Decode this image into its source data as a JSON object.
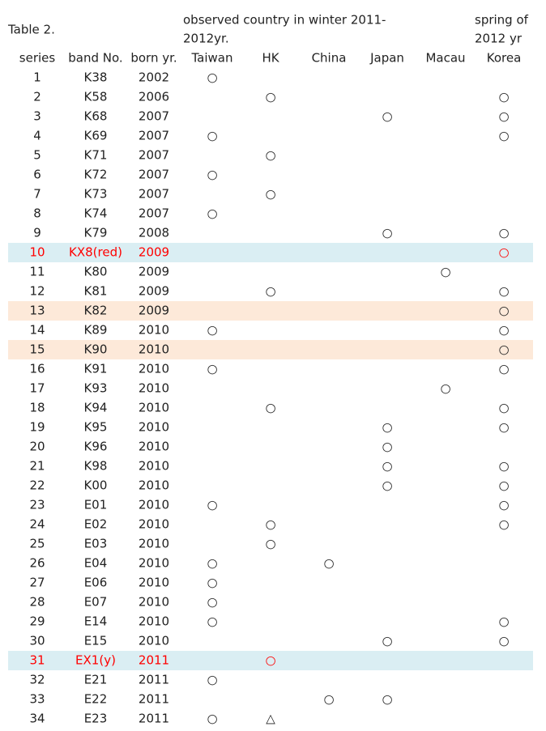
{
  "header": {
    "caption": "Table 2.",
    "observed_line1": "observed country in winter 2011-",
    "observed_line2": "2012yr.",
    "spring_line1": "spring of",
    "spring_line2": "2012 yr"
  },
  "table": {
    "columns": [
      "series",
      "band No.",
      "born yr.",
      "Taiwan",
      "HK",
      "China",
      "Japan",
      "Macau",
      "Korea"
    ],
    "rows": [
      {
        "cells": [
          "1",
          "K38",
          "2002",
          "○",
          null,
          null,
          null,
          null,
          null
        ]
      },
      {
        "cells": [
          "2",
          "K58",
          "2006",
          null,
          "○",
          null,
          null,
          null,
          "○"
        ]
      },
      {
        "cells": [
          "3",
          "K68",
          "2007",
          null,
          null,
          null,
          "○",
          null,
          "○"
        ]
      },
      {
        "cells": [
          "4",
          "K69",
          "2007",
          "○",
          null,
          null,
          null,
          null,
          "○"
        ]
      },
      {
        "cells": [
          "5",
          "K71",
          "2007",
          null,
          "○",
          null,
          null,
          null,
          null
        ]
      },
      {
        "cells": [
          "6",
          "K72",
          "2007",
          "○",
          null,
          null,
          null,
          null,
          null
        ]
      },
      {
        "cells": [
          "7",
          "K73",
          "2007",
          null,
          "○",
          null,
          null,
          null,
          null
        ]
      },
      {
        "cells": [
          "8",
          "K74",
          "2007",
          "○",
          null,
          null,
          null,
          null,
          null
        ]
      },
      {
        "cells": [
          "9",
          "K79",
          "2008",
          null,
          null,
          null,
          "○",
          null,
          "○"
        ]
      },
      {
        "cells": [
          "10",
          "KX8(red)",
          "2009",
          null,
          null,
          null,
          null,
          null,
          "○"
        ],
        "fill": "#daeef3",
        "color": "#ff0000"
      },
      {
        "cells": [
          "11",
          "K80",
          "2009",
          null,
          null,
          null,
          null,
          "○",
          null
        ]
      },
      {
        "cells": [
          "12",
          "K81",
          "2009",
          null,
          "○",
          null,
          null,
          null,
          "○"
        ]
      },
      {
        "cells": [
          "13",
          "K82",
          "2009",
          null,
          null,
          null,
          null,
          null,
          "○"
        ],
        "fill": "#fde9d9"
      },
      {
        "cells": [
          "14",
          "K89",
          "2010",
          "○",
          null,
          null,
          null,
          null,
          "○"
        ]
      },
      {
        "cells": [
          "15",
          "K90",
          "2010",
          null,
          null,
          null,
          null,
          null,
          "○"
        ],
        "fill": "#fde9d9"
      },
      {
        "cells": [
          "16",
          "K91",
          "2010",
          "○",
          null,
          null,
          null,
          null,
          "○"
        ]
      },
      {
        "cells": [
          "17",
          "K93",
          "2010",
          null,
          null,
          null,
          null,
          "○",
          null
        ]
      },
      {
        "cells": [
          "18",
          "K94",
          "2010",
          null,
          "○",
          null,
          null,
          null,
          "○"
        ]
      },
      {
        "cells": [
          "19",
          "K95",
          "2010",
          null,
          null,
          null,
          "○",
          null,
          "○"
        ]
      },
      {
        "cells": [
          "20",
          "K96",
          "2010",
          null,
          null,
          null,
          "○",
          null,
          null
        ]
      },
      {
        "cells": [
          "21",
          "K98",
          "2010",
          null,
          null,
          null,
          "○",
          null,
          "○"
        ]
      },
      {
        "cells": [
          "22",
          "K00",
          "2010",
          null,
          null,
          null,
          "○",
          null,
          "○"
        ]
      },
      {
        "cells": [
          "23",
          "E01",
          "2010",
          "○",
          null,
          null,
          null,
          null,
          "○"
        ]
      },
      {
        "cells": [
          "24",
          "E02",
          "2010",
          null,
          "○",
          null,
          null,
          null,
          "○"
        ]
      },
      {
        "cells": [
          "25",
          "E03",
          "2010",
          null,
          "○",
          null,
          null,
          null,
          null
        ]
      },
      {
        "cells": [
          "26",
          "E04",
          "2010",
          "○",
          null,
          "○",
          null,
          null,
          null
        ]
      },
      {
        "cells": [
          "27",
          "E06",
          "2010",
          "○",
          null,
          null,
          null,
          null,
          null
        ]
      },
      {
        "cells": [
          "28",
          "E07",
          "2010",
          "○",
          null,
          null,
          null,
          null,
          null
        ]
      },
      {
        "cells": [
          "29",
          "E14",
          "2010",
          "○",
          null,
          null,
          null,
          null,
          "○"
        ]
      },
      {
        "cells": [
          "30",
          "E15",
          "2010",
          null,
          null,
          null,
          "○",
          null,
          "○"
        ]
      },
      {
        "cells": [
          "31",
          "EX1(y)",
          "2011",
          null,
          "○",
          null,
          null,
          null,
          null
        ],
        "fill": "#daeef3",
        "color": "#ff0000"
      },
      {
        "cells": [
          "32",
          "E21",
          "2011",
          "○",
          null,
          null,
          null,
          null,
          null
        ]
      },
      {
        "cells": [
          "33",
          "E22",
          "2011",
          null,
          null,
          "○",
          "○",
          null,
          null
        ]
      },
      {
        "cells": [
          "34",
          "E23",
          "2011",
          "○",
          "△",
          null,
          null,
          null,
          null
        ]
      }
    ]
  }
}
